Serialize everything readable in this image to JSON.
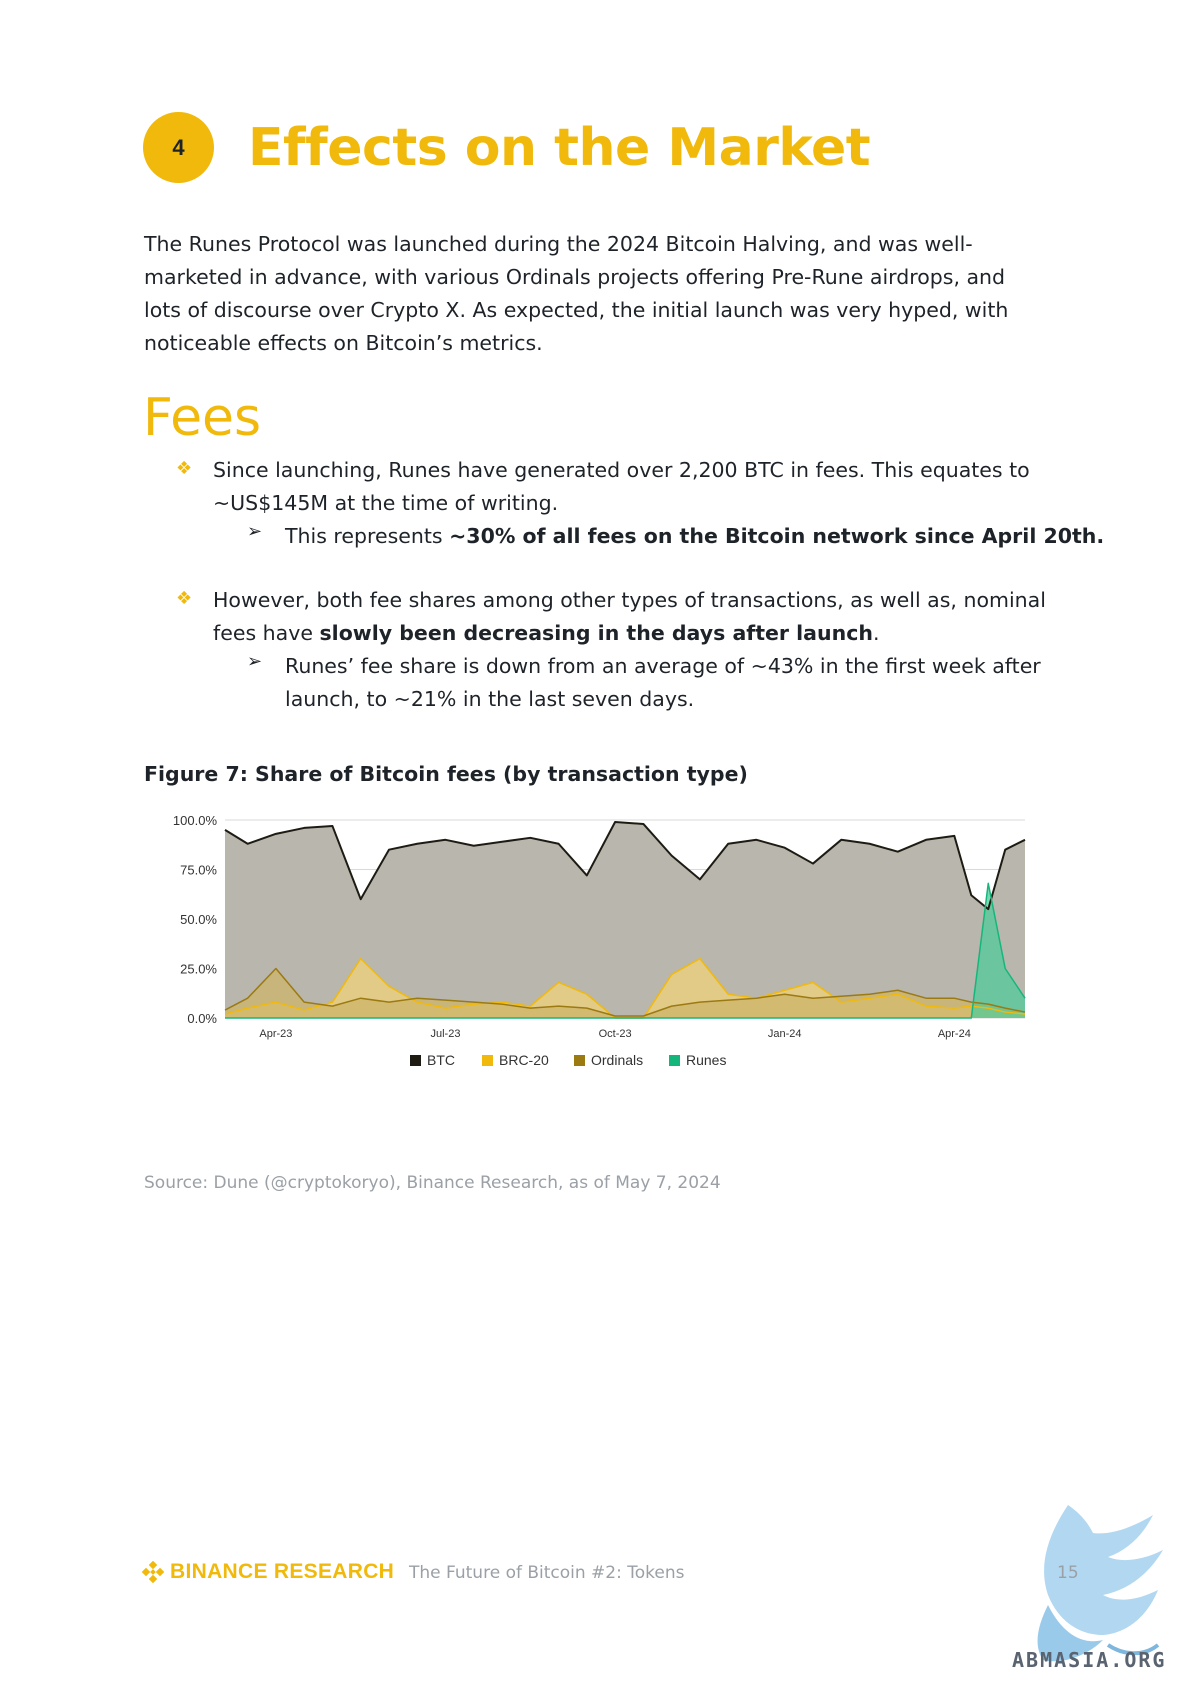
{
  "section": {
    "number": "4",
    "title": "Effects on the Market",
    "intro": "The Runes Protocol was launched during the 2024 Bitcoin Halving, and was well-marketed in advance, with various Ordinals projects offering Pre-Rune airdrops, and lots of discourse over Crypto X. As expected, the initial launch was very hyped, with noticeable effects on Bitcoin’s metrics."
  },
  "fees": {
    "heading": "Fees",
    "bullet1_line1": "Since launching, Runes have generated over 2,200 BTC in fees. This equates to",
    "bullet1_line2": "~US$145M at the time of writing.",
    "sub1_prefix": "This represents ",
    "sub1_bold": "~30% of all fees on the Bitcoin network since April 20th.",
    "bullet2_line1": "However, both fee shares among other types of transactions, as well as, nominal",
    "bullet2_prefix": "fees have ",
    "bullet2_bold": "slowly been decreasing in the days after launch",
    "bullet2_suffix": ".",
    "sub2_line1": "Runes’ fee share is down from an average of ~43% in the first week after",
    "sub2_line2": "launch, to ~21% in the last seven days."
  },
  "figure": {
    "caption": "Figure 7: Share of Bitcoin fees (by transaction type)",
    "source": "Source: Dune (@cryptokoryo), Binance Research, as of May 7, 2024"
  },
  "chart_data": {
    "type": "area",
    "title": "",
    "xlabel": "",
    "ylabel": "",
    "ylim": [
      0,
      100
    ],
    "y_ticks": [
      "0.0%",
      "25.0%",
      "50.0%",
      "75.0%",
      "100.0%"
    ],
    "x_ticks": [
      "Apr-23",
      "Jul-23",
      "Oct-23",
      "Jan-24",
      "Apr-24"
    ],
    "x_tick_positions_month_index": [
      1,
      4,
      7,
      10,
      13
    ],
    "x_range_months": [
      0.1,
      14.25
    ],
    "legend_position": "bottom",
    "grid": true,
    "stacked": false,
    "series_note": "Values are monthly approximations read from the chart (percent of fees).",
    "x_months": [
      0.1,
      0.5,
      1,
      1.5,
      2,
      2.5,
      3,
      3.5,
      4,
      4.5,
      5,
      5.5,
      6,
      6.5,
      7,
      7.5,
      8,
      8.5,
      9,
      9.5,
      10,
      10.5,
      11,
      11.5,
      12,
      12.5,
      13,
      13.3,
      13.6,
      13.9,
      14.25
    ],
    "series": [
      {
        "name": "BTC",
        "color": "#1e1c12",
        "fill": "#b9b6ae",
        "values": [
          95,
          88,
          93,
          96,
          97,
          60,
          85,
          88,
          90,
          87,
          89,
          91,
          88,
          72,
          99,
          98,
          82,
          70,
          88,
          90,
          86,
          78,
          90,
          88,
          84,
          90,
          92,
          62,
          55,
          85,
          90
        ]
      },
      {
        "name": "BRC-20",
        "color": "#f0b90b",
        "fill": "#f0d27a",
        "values": [
          2,
          5,
          8,
          4,
          8,
          30,
          16,
          8,
          5,
          7,
          8,
          6,
          18,
          12,
          0,
          0,
          22,
          30,
          12,
          10,
          14,
          18,
          8,
          10,
          12,
          6,
          5,
          6,
          5,
          3,
          2
        ]
      },
      {
        "name": "Ordinals",
        "color": "#9c7a12",
        "fill": "#cdb46a",
        "values": [
          4,
          10,
          25,
          8,
          6,
          10,
          8,
          10,
          9,
          8,
          7,
          5,
          6,
          5,
          1,
          1,
          6,
          8,
          9,
          10,
          12,
          10,
          11,
          12,
          14,
          10,
          10,
          8,
          7,
          5,
          3
        ]
      },
      {
        "name": "Runes",
        "color": "#15b67c",
        "fill": "#52c998",
        "values": [
          0,
          0,
          0,
          0,
          0,
          0,
          0,
          0,
          0,
          0,
          0,
          0,
          0,
          0,
          0,
          0,
          0,
          0,
          0,
          0,
          0,
          0,
          0,
          0,
          0,
          0,
          0,
          0,
          68,
          25,
          10
        ]
      }
    ]
  },
  "footer": {
    "brand": "BINANCE RESEARCH",
    "doc_title": "The Future of Bitcoin #2: Tokens",
    "page": "15",
    "watermark_text": "ABMASIA.ORG"
  }
}
